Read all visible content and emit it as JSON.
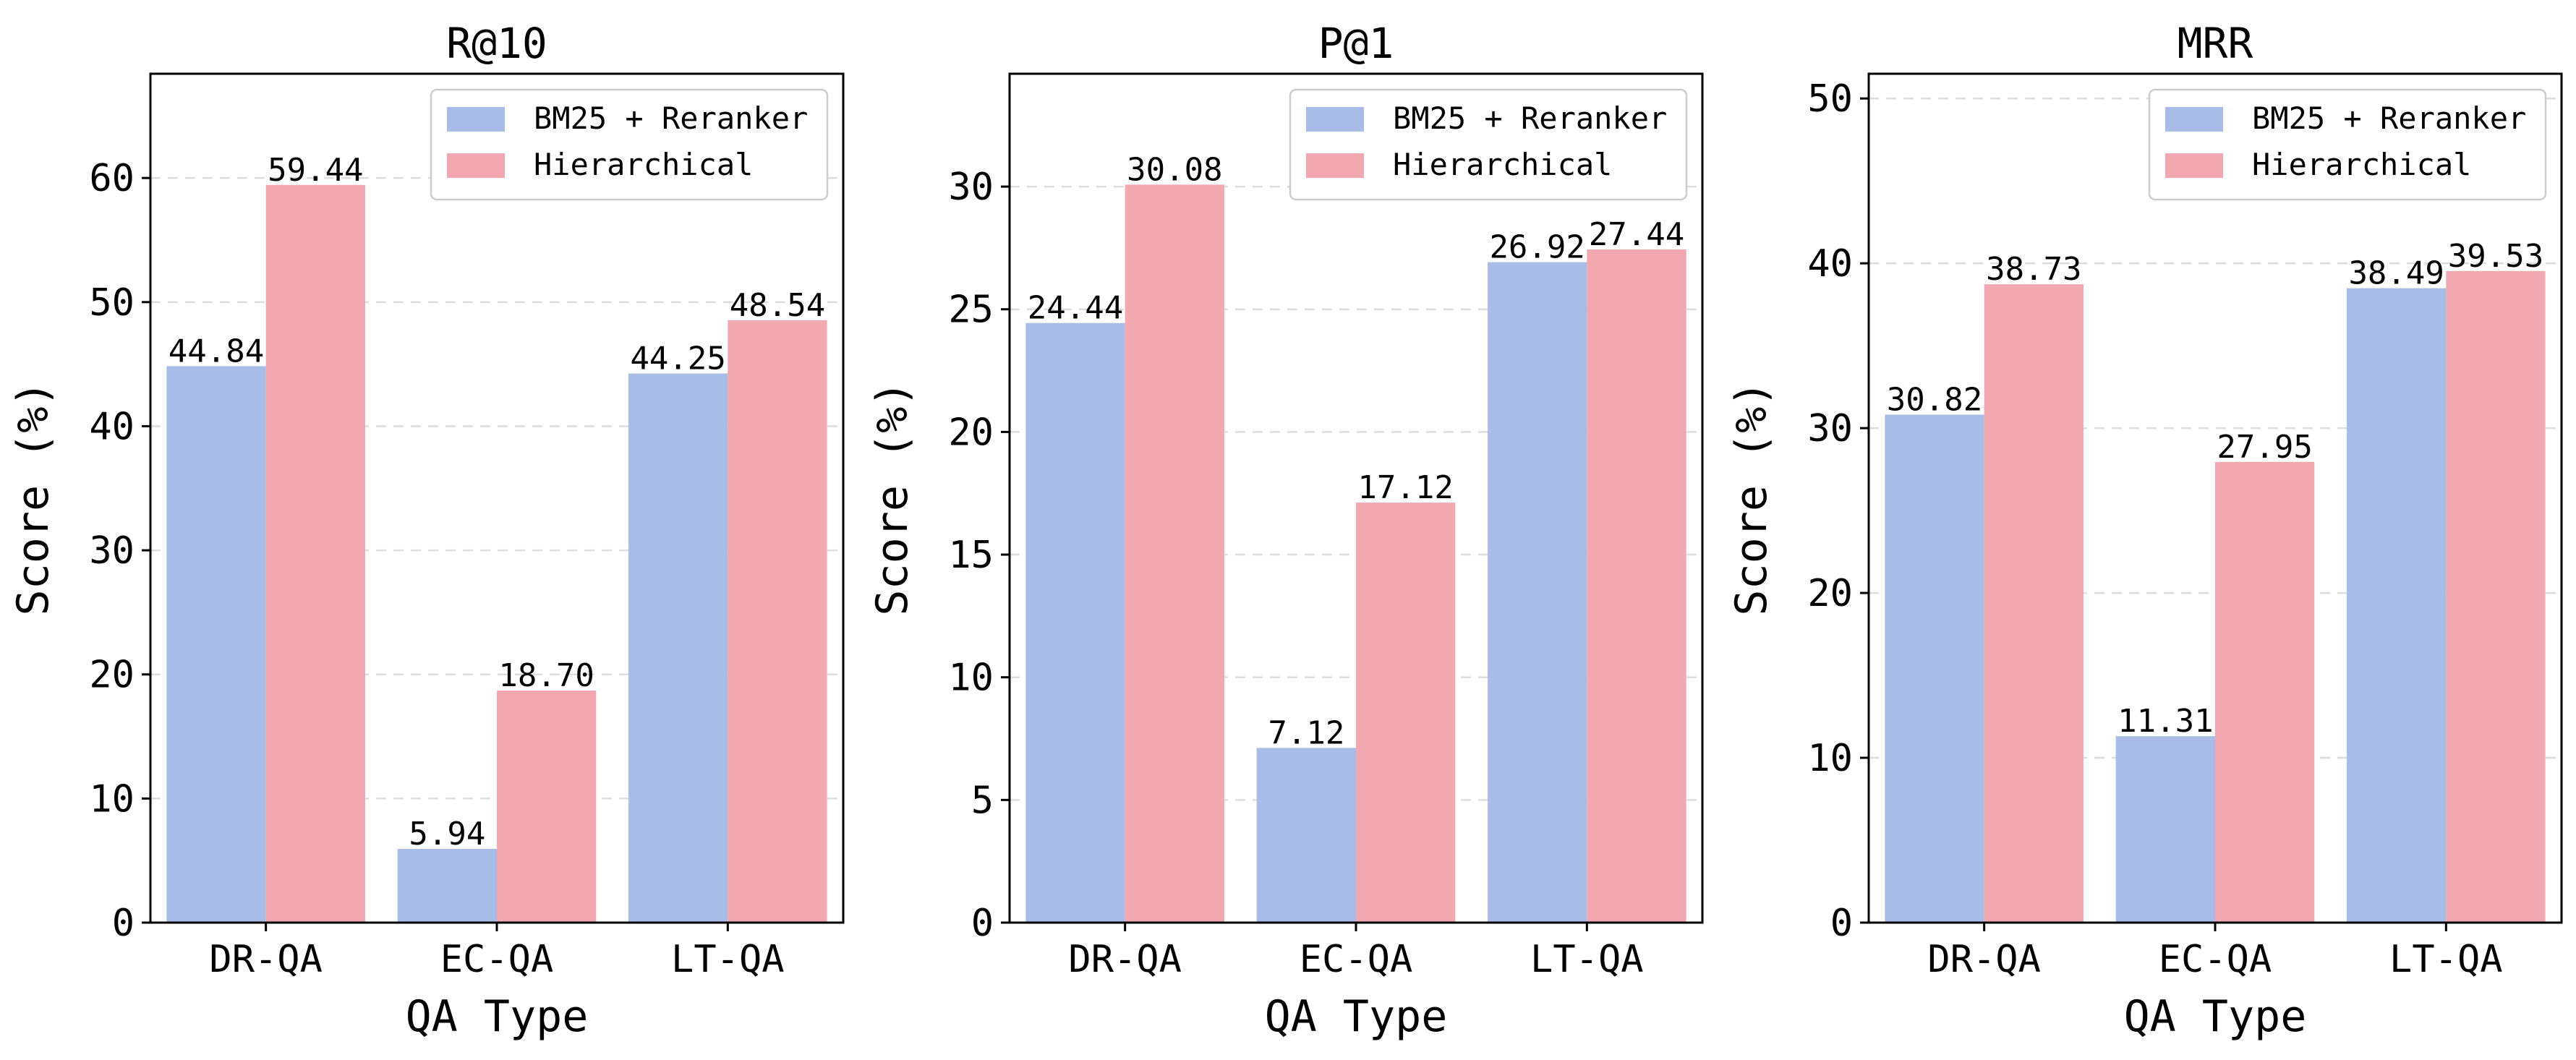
{
  "chart_data": [
    {
      "type": "bar",
      "title": "R@10",
      "xlabel": "QA Type",
      "ylabel": "Score (%)",
      "categories": [
        "DR-QA",
        "EC-QA",
        "LT-QA"
      ],
      "series": [
        {
          "name": "BM25 + Reranker",
          "values": [
            44.84,
            5.94,
            44.25
          ],
          "labels": [
            "44.84",
            "5.94",
            "44.25"
          ],
          "color": "#a7bde8"
        },
        {
          "name": "Hierarchical",
          "values": [
            59.44,
            18.7,
            48.54
          ],
          "labels": [
            "59.44",
            "18.70",
            "48.54"
          ],
          "color": "#f2a8b1"
        }
      ],
      "ylim": [
        0,
        68.4
      ],
      "yticks": [
        0,
        10,
        20,
        30,
        40,
        50,
        60
      ],
      "ytick_labels": [
        "0",
        "10",
        "20",
        "30",
        "40",
        "50",
        "60"
      ],
      "grid": true,
      "legend": "top-right"
    },
    {
      "type": "bar",
      "title": "P@1",
      "xlabel": "QA Type",
      "ylabel": "Score (%)",
      "categories": [
        "DR-QA",
        "EC-QA",
        "LT-QA"
      ],
      "series": [
        {
          "name": "BM25 + Reranker",
          "values": [
            24.44,
            7.12,
            26.92
          ],
          "labels": [
            "24.44",
            "7.12",
            "26.92"
          ],
          "color": "#a7bde8"
        },
        {
          "name": "Hierarchical",
          "values": [
            30.08,
            17.12,
            27.44
          ],
          "labels": [
            "30.08",
            "17.12",
            "27.44"
          ],
          "color": "#f2a8b1"
        }
      ],
      "ylim": [
        0,
        34.6
      ],
      "yticks": [
        0,
        5,
        10,
        15,
        20,
        25,
        30
      ],
      "ytick_labels": [
        "0",
        "5",
        "10",
        "15",
        "20",
        "25",
        "30"
      ],
      "grid": true,
      "legend": "top-right"
    },
    {
      "type": "bar",
      "title": "MRR",
      "xlabel": "QA Type",
      "ylabel": "Score (%)",
      "categories": [
        "DR-QA",
        "EC-QA",
        "LT-QA"
      ],
      "series": [
        {
          "name": "BM25 + Reranker",
          "values": [
            30.82,
            11.31,
            38.49
          ],
          "labels": [
            "30.82",
            "11.31",
            "38.49"
          ],
          "color": "#a7bde8"
        },
        {
          "name": "Hierarchical",
          "values": [
            38.73,
            27.95,
            39.53
          ],
          "labels": [
            "38.73",
            "27.95",
            "39.53"
          ],
          "color": "#f2a8b1"
        }
      ],
      "ylim": [
        0,
        51.5
      ],
      "yticks": [
        0,
        10,
        20,
        30,
        40,
        50
      ],
      "ytick_labels": [
        "0",
        "10",
        "20",
        "30",
        "40",
        "50"
      ],
      "grid": true,
      "legend": "top-right"
    }
  ]
}
